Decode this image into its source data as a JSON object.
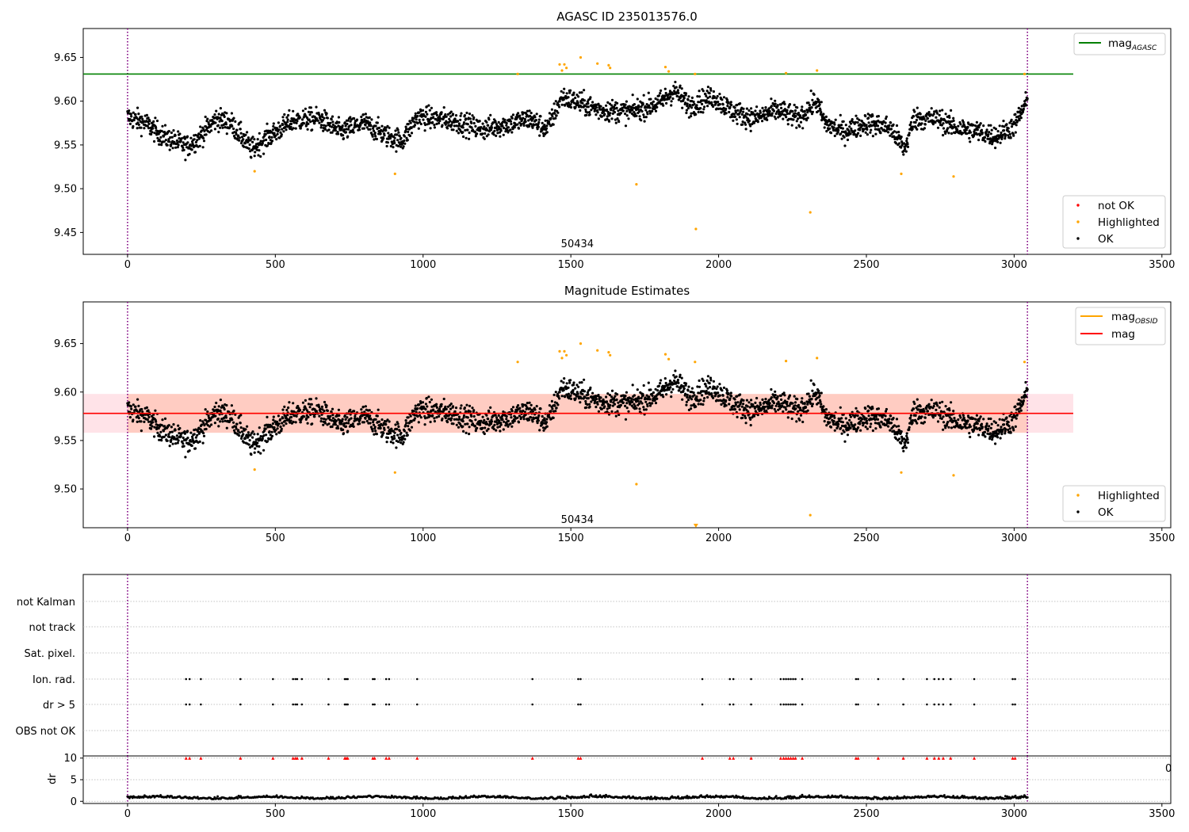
{
  "chart_data": [
    {
      "type": "scatter",
      "title": "AGASC ID 235013576.0",
      "xlim": [
        -150,
        3530
      ],
      "ylim": [
        9.425,
        9.683
      ],
      "xticks": [
        0,
        500,
        1000,
        1500,
        2000,
        2500,
        3000,
        3500
      ],
      "yticks": [
        9.45,
        9.5,
        9.55,
        9.6,
        9.65
      ],
      "vlines": [
        0,
        3045
      ],
      "hline": {
        "name": "mag_AGASC",
        "label": "mag",
        "sub": "AGASC",
        "y": 9.631,
        "x_end": 3200,
        "color": "#008000"
      },
      "obsid_label": {
        "text": "50434",
        "x": 1522,
        "y": 9.433
      },
      "legend_lines": [
        {
          "label": "mag",
          "sub": "AGASC",
          "color": "#008000"
        }
      ],
      "legend_markers": [
        {
          "label": "not OK",
          "color": "#ff0000"
        },
        {
          "label": "Highlighted",
          "color": "#ffa500"
        },
        {
          "label": "OK",
          "color": "#000000"
        }
      ],
      "series": [
        {
          "name": "OK",
          "color": "#000000",
          "description_x_range": [
            0,
            3045
          ],
          "points_generated_count": 2600
        },
        {
          "name": "Highlighted",
          "color": "#ffa500",
          "x": [
            430,
            905,
            1320,
            1462,
            1470,
            1478,
            1485,
            1533,
            1590,
            1628,
            1633,
            1722,
            1820,
            1831,
            1920,
            1923,
            2228,
            2310,
            2333,
            2618,
            2795,
            3035
          ],
          "y": [
            9.52,
            9.517,
            9.631,
            9.642,
            9.635,
            9.642,
            9.638,
            9.65,
            9.643,
            9.641,
            9.638,
            9.505,
            9.639,
            9.634,
            9.631,
            9.454,
            9.632,
            9.473,
            9.635,
            9.517,
            9.514,
            9.631
          ]
        }
      ]
    },
    {
      "type": "scatter",
      "title": "Magnitude Estimates",
      "xlim": [
        -150,
        3530
      ],
      "ylim": [
        9.46,
        9.693
      ],
      "xticks": [
        0,
        500,
        1000,
        1500,
        2000,
        2500,
        3000,
        3500
      ],
      "yticks": [
        9.5,
        9.55,
        9.6,
        9.65
      ],
      "vlines": [
        0,
        3045
      ],
      "mag_line": {
        "label": "mag",
        "y": 9.578,
        "x_end": 3200,
        "color": "#ff0000"
      },
      "mag_obsid_line": {
        "label": "mag",
        "sub": "OBSID",
        "y": 9.578,
        "x_start": 0,
        "x_end": 3045,
        "color": "#ffa500"
      },
      "band": {
        "y_low": 9.558,
        "y_high": 9.598,
        "outer_color": "#ffc0cb",
        "inner_color": "#ffa07a"
      },
      "obsid_label": {
        "text": "50434",
        "x": 1522,
        "y": 9.465
      },
      "legend_lines": [
        {
          "label": "mag",
          "sub": "OBSID",
          "color": "#ffa500"
        },
        {
          "label": "mag",
          "sub": "",
          "color": "#ff0000"
        }
      ],
      "legend_markers": [
        {
          "label": "Highlighted",
          "color": "#ffa500"
        },
        {
          "label": "OK",
          "color": "#000000"
        }
      ]
    },
    {
      "type": "scatter",
      "title": "",
      "xlim": [
        -150,
        3530
      ],
      "categories": [
        "not Kalman",
        "not track",
        "Sat. pixel.",
        "Ion. rad.",
        "dr > 5",
        "OBS not OK"
      ],
      "vlines": [
        0,
        3045
      ],
      "flag_x": [
        198,
        210,
        248,
        382,
        492,
        560,
        568,
        574,
        590,
        680,
        735,
        740,
        745,
        830,
        836,
        875,
        885,
        980,
        1370,
        1525,
        1533,
        1945,
        2038,
        2050,
        2110,
        2210,
        2220,
        2228,
        2236,
        2244,
        2252,
        2260,
        2283,
        2465,
        2472,
        2540,
        2625,
        2705,
        2730,
        2745,
        2760,
        2785,
        2865,
        2995,
        3003
      ],
      "flag_rows": [
        "Ion. rad.",
        "dr > 5"
      ],
      "dr_panel": {
        "ylabel": "dr",
        "yticks": [
          0,
          5,
          10
        ],
        "ylim": [
          -0.5,
          10.5
        ],
        "threshold_marker_color": "#ff0000",
        "truncated_tick_text": "0"
      }
    }
  ]
}
